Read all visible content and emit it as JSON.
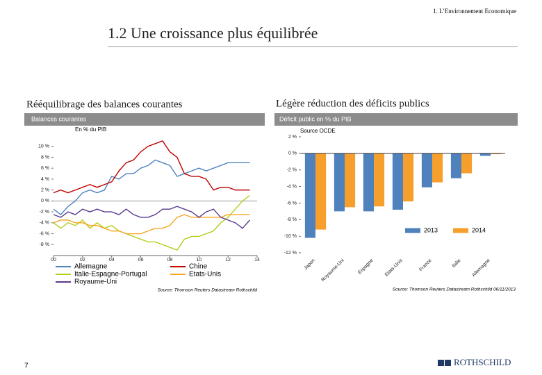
{
  "header": {
    "section": "1. L’Environnement Economique",
    "title": "1.2 Une croissance plus équilibrée"
  },
  "panels": [
    {
      "heading": "Rééquilibrage des balances courantes",
      "band": "Balances courantes"
    },
    {
      "heading": "Légère réduction des déficits publics",
      "band": "Déficit public en % du PIB"
    }
  ],
  "page_number": "7",
  "logo": "ROTHSCHILD",
  "chart_data": [
    {
      "type": "line",
      "ylabel": "En % du PIB",
      "source": "Source: Thomson Reuters Datastream Rothschild",
      "x": [
        0,
        0.5,
        1,
        1.5,
        2,
        2.5,
        3,
        3.5,
        4,
        4.5,
        5,
        5.5,
        6,
        6.5,
        7,
        7.5,
        8,
        8.5,
        9,
        9.5,
        10,
        10.5,
        11,
        11.5,
        12,
        12.5,
        13,
        13.5
      ],
      "xlim": [
        0,
        14
      ],
      "xticks": [
        {
          "value": 0,
          "label": "00"
        },
        {
          "value": 2,
          "label": "02"
        },
        {
          "value": 4,
          "label": "04"
        },
        {
          "value": 6,
          "label": "06"
        },
        {
          "value": 8,
          "label": "08"
        },
        10,
        12,
        14
      ],
      "ylim": [
        -10,
        12
      ],
      "yticks": [
        {
          "value": -8,
          "label": "-8 %"
        },
        {
          "value": -6,
          "label": "-6 %"
        },
        {
          "value": -4,
          "label": "-4 %"
        },
        {
          "value": -2,
          "label": "-2 %"
        },
        {
          "value": 0,
          "label": "0 %"
        },
        {
          "value": 2,
          "label": "2 %"
        },
        {
          "value": 4,
          "label": "4 %"
        },
        {
          "value": 6,
          "label": "6 %"
        },
        {
          "value": 8,
          "label": "8 %"
        },
        {
          "value": 10,
          "label": "10 %"
        }
      ],
      "series": [
        {
          "name": "Allemagne",
          "color": "#4f81bd",
          "values": [
            -1.5,
            -2.5,
            -1,
            0,
            1.5,
            2,
            1.5,
            2,
            4.5,
            4,
            5,
            5,
            6,
            6.5,
            7.5,
            7,
            6.5,
            4.5,
            5,
            5.5,
            6,
            5.5,
            6,
            6.5,
            7,
            7,
            7,
            7
          ]
        },
        {
          "name": "Chine",
          "color": "#c00000",
          "values": [
            1.5,
            2,
            1.5,
            2,
            2.5,
            3,
            2.5,
            3,
            3.5,
            5.5,
            7,
            7.5,
            9,
            10,
            10.5,
            11,
            9,
            8,
            5,
            4.5,
            4.5,
            4,
            2,
            2.5,
            2.5,
            2,
            2,
            2
          ]
        },
        {
          "name": "Italie-Espagne-Portugal",
          "color": "#b5cc18",
          "values": [
            -4,
            -5,
            -4,
            -4.5,
            -3.5,
            -5,
            -4,
            -5,
            -4.5,
            -5.5,
            -6,
            -6.5,
            -7,
            -7.5,
            -7.5,
            -8,
            -8.5,
            -9,
            -7,
            -6.5,
            -6.5,
            -6,
            -5.5,
            -4,
            -3,
            -1.5,
            0,
            1
          ]
        },
        {
          "name": "Etats-Unis",
          "color": "#f5a623",
          "values": [
            -4,
            -3.5,
            -3.5,
            -4,
            -4,
            -4.5,
            -4.5,
            -5,
            -5.5,
            -5.5,
            -6,
            -6,
            -6,
            -5.5,
            -5,
            -5,
            -4.5,
            -3,
            -2.5,
            -3,
            -3,
            -3,
            -3,
            -3,
            -2.5,
            -2.5,
            -2.5,
            -2.5
          ]
        },
        {
          "name": "Royaume-Uni",
          "color": "#5b3a8c",
          "values": [
            -2.5,
            -3,
            -2,
            -2.5,
            -1.5,
            -2,
            -1.5,
            -2,
            -2,
            -2.5,
            -1.5,
            -2.5,
            -3,
            -3,
            -2.5,
            -1.5,
            -1.5,
            -1,
            -1.5,
            -2,
            -3,
            -2,
            -1.5,
            -3,
            -3.5,
            -4,
            -5,
            -3.5
          ]
        }
      ]
    },
    {
      "type": "bar",
      "note": "Source OCDE",
      "source": "Source: Thomson Reuters Datastream Rothschild 06/11/2013",
      "categories": [
        "Japon",
        "Royaume-Uni",
        "Espagne",
        "Etats-Unis",
        "France",
        "Italie",
        "Allemagne"
      ],
      "ylim": [
        -12,
        2
      ],
      "yticks": [
        {
          "value": -12,
          "label": "-12 %"
        },
        {
          "value": -10,
          "label": "-10 %"
        },
        {
          "value": -8,
          "label": "-8 %"
        },
        {
          "value": -6,
          "label": "-6 %"
        },
        {
          "value": -4,
          "label": "-4 %"
        },
        {
          "value": -2,
          "label": "-2 %"
        },
        {
          "value": 0,
          "label": "0 %"
        },
        {
          "value": 2,
          "label": "2 %"
        }
      ],
      "series": [
        {
          "name": "2013",
          "color": "#4f81bd",
          "values": [
            -10.2,
            -7,
            -7,
            -6.8,
            -4.1,
            -3,
            -0.3
          ]
        },
        {
          "name": "2014",
          "color": "#f79f2c",
          "values": [
            -9.2,
            -6.5,
            -6.4,
            -5.8,
            -3.5,
            -2.4,
            -0.1
          ]
        }
      ]
    }
  ]
}
